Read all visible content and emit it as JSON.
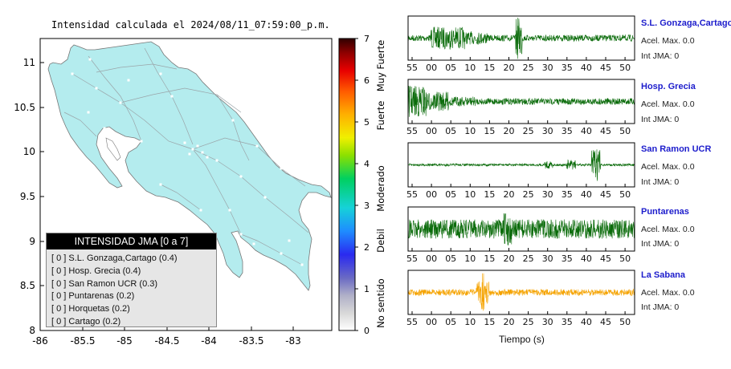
{
  "map": {
    "title": "Intensidad calculada el 2024/08/11_07:59:00_p.m.",
    "lat_ticks": [
      "11",
      "10.5",
      "10",
      "9.5",
      "9",
      "8.5",
      "8"
    ],
    "lon_ticks": [
      "-86",
      "-85.5",
      "-85",
      "-84.5",
      "-84",
      "-83.5",
      "-83"
    ],
    "land_color": "#b4ecee",
    "sea_color": "#ffffff"
  },
  "colorbar": {
    "ticks": [
      "7",
      "6",
      "5",
      "4",
      "3",
      "2",
      "1",
      "0"
    ],
    "categories": [
      "Muy Fuerte",
      "Fuerte",
      "Moderado",
      "Debil",
      "No sentido"
    ]
  },
  "legend": {
    "title": "INTENSIDAD JMA [0 a 7]",
    "rows": [
      "[ 0 ]  S.L. Gonzaga,Cartago (0.4)",
      "[ 0 ]  Hosp. Grecia (0.4)",
      "[ 0 ]  San Ramon UCR (0.3)",
      "[ 0 ]  Puntarenas (0.2)",
      "[ 0 ]  Horquetas (0.2)",
      "[ 0 ]  Cartago (0.2)"
    ]
  },
  "seismograms": {
    "time_ticks": [
      "55",
      "00",
      "05",
      "10",
      "15",
      "20",
      "25",
      "30",
      "35",
      "40",
      "45",
      "50"
    ],
    "xlabel": "Tiempo (s)",
    "stations": [
      {
        "name": "S.L. Gonzaga,Cartago",
        "acel": "Acel. Max. 0.0",
        "int": "Int JMA: 0",
        "trace_color": "#0a6b0a"
      },
      {
        "name": "Hosp. Grecia",
        "acel": "Acel. Max. 0.0",
        "int": "Int JMA: 0",
        "trace_color": "#0a6b0a"
      },
      {
        "name": "San Ramon UCR",
        "acel": "Acel. Max. 0.0",
        "int": "Int JMA: 0",
        "trace_color": "#0a6b0a"
      },
      {
        "name": "Puntarenas",
        "acel": "Acel. Max. 0.0",
        "int": "Int JMA: 0",
        "trace_color": "#0a6b0a"
      },
      {
        "name": "La Sabana",
        "acel": "Acel. Max. 0.0",
        "int": "Int JMA: 0",
        "trace_color": "#f5a300"
      }
    ]
  }
}
